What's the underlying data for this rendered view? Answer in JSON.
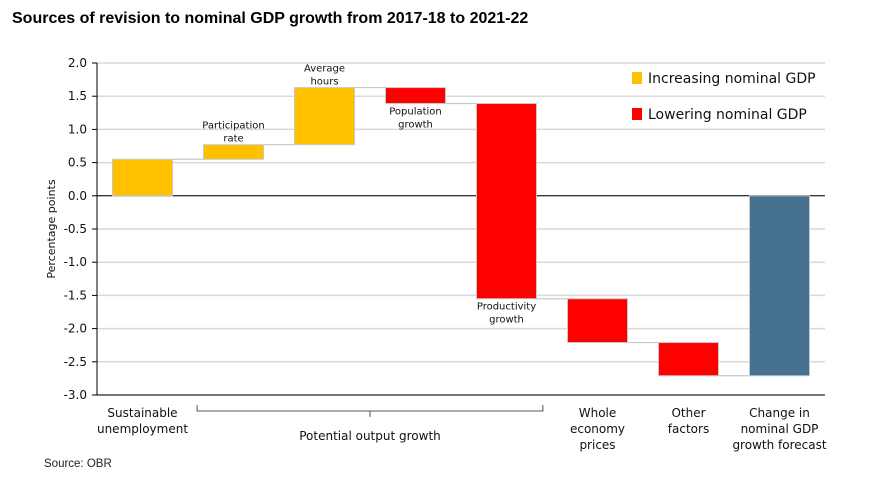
{
  "chart_data": {
    "type": "waterfall",
    "title": "Sources of revision to nominal GDP growth from 2017-18 to 2021-22",
    "ylabel": "Percentage points",
    "xlabel": "",
    "ylim": [
      -3.0,
      2.0
    ],
    "yticks": [
      "2.0",
      "1.5",
      "1.0",
      "0.5",
      "0.0",
      "-0.5",
      "-1.0",
      "-1.5",
      "-2.0",
      "-2.5",
      "-3.0"
    ],
    "grid": true,
    "legend_position": "top-right",
    "legend": [
      {
        "label": "Increasing nominal GDP",
        "color": "#FFC000"
      },
      {
        "label": "Lowering nominal GDP",
        "color": "#FF0000"
      }
    ],
    "steps": [
      {
        "label": "Sustainable unemployment",
        "start": 0.0,
        "end": 0.55,
        "color": "#FFC000",
        "inner_label": ""
      },
      {
        "label": "Participation rate",
        "start": 0.55,
        "end": 0.77,
        "color": "#FFC000",
        "inner_label": "Participation rate"
      },
      {
        "label": "Average hours",
        "start": 0.77,
        "end": 1.63,
        "color": "#FFC000",
        "inner_label": "Average hours"
      },
      {
        "label": "Population growth",
        "start": 1.63,
        "end": 1.39,
        "color": "#FF0000",
        "inner_label": "Population growth"
      },
      {
        "label": "Productivity growth",
        "start": 1.39,
        "end": -1.55,
        "color": "#FF0000",
        "inner_label": "Productivity growth"
      },
      {
        "label": "Whole economy prices",
        "start": -1.55,
        "end": -2.21,
        "color": "#FF0000",
        "inner_label": ""
      },
      {
        "label": "Other factors",
        "start": -2.21,
        "end": -2.71,
        "color": "#FF0000",
        "inner_label": ""
      },
      {
        "label": "Change in nominal GDP growth forecast",
        "start": 0.0,
        "end": -2.71,
        "color": "#46708F",
        "inner_label": ""
      }
    ],
    "category_labels": [
      {
        "lines": [
          "Sustainable",
          "unemployment"
        ]
      },
      {
        "lines": [
          "Potential output growth"
        ],
        "bracket": true
      },
      {
        "lines": [
          "Whole",
          "economy",
          "prices"
        ]
      },
      {
        "lines": [
          "Other",
          "factors"
        ]
      },
      {
        "lines": [
          "Change in",
          "nominal GDP",
          "growth forecast"
        ]
      }
    ]
  },
  "source": "Source: OBR"
}
